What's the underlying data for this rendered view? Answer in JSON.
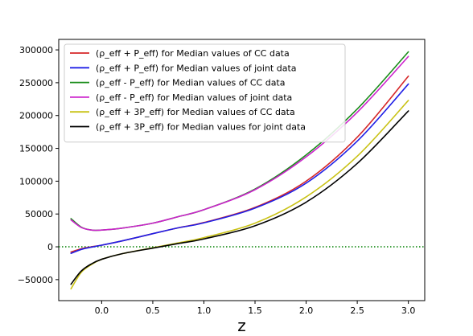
{
  "chart_data": {
    "type": "line",
    "title": "",
    "xlabel": "z",
    "ylabel": "",
    "xlim": [
      -0.42,
      3.16
    ],
    "ylim": [
      -82000,
      316000
    ],
    "xticks": [
      0.0,
      0.5,
      1.0,
      1.5,
      2.0,
      2.5,
      3.0
    ],
    "xtick_labels": [
      "0.0",
      "0.5",
      "1.0",
      "1.5",
      "2.0",
      "2.5",
      "3.0"
    ],
    "yticks": [
      -50000,
      0,
      50000,
      100000,
      150000,
      200000,
      250000,
      300000
    ],
    "ytick_labels": [
      "−50000",
      "0",
      "50000",
      "100000",
      "150000",
      "200000",
      "250000",
      "300000"
    ],
    "grid": false,
    "legend_position": "top-left",
    "reference_line": {
      "y": 0,
      "style": "dotted",
      "color": "#008000"
    },
    "x": [
      -0.3,
      -0.2,
      -0.1,
      0.0,
      0.2,
      0.5,
      0.75,
      1.0,
      1.5,
      2.0,
      2.5,
      3.0
    ],
    "series": [
      {
        "name": "(ρ_eff + P_eff) for Median values of CC data",
        "color": "#d62728",
        "values": [
          -8000,
          -3000,
          0,
          2500,
          9000,
          20000,
          29000,
          37000,
          60000,
          100000,
          167000,
          260000
        ]
      },
      {
        "name": "(ρ_eff + P_eff) for Median values of joint data",
        "color": "#1f1fe6",
        "values": [
          -10000,
          -4000,
          -500,
          2500,
          9000,
          20000,
          29000,
          36500,
          59000,
          97000,
          161000,
          248000
        ]
      },
      {
        "name": "(ρ_eff - P_eff) for Median values of CC data",
        "color": "#1a8c1a",
        "values": [
          43000,
          30000,
          25500,
          25500,
          28500,
          36000,
          46000,
          56500,
          88000,
          140000,
          210000,
          297000
        ]
      },
      {
        "name": "(ρ_eff - P_eff) for Median values of joint data",
        "color": "#cc22cc",
        "values": [
          41000,
          29500,
          25500,
          25500,
          28500,
          36000,
          46000,
          56500,
          87000,
          137000,
          205000,
          290000
        ]
      },
      {
        "name": "(ρ_eff + 3P_eff) for Median values of CC data",
        "color": "#c9c215",
        "values": [
          -64000,
          -39000,
          -27000,
          -19000,
          -10500,
          -1500,
          6000,
          14000,
          36000,
          76000,
          138000,
          223000
        ]
      },
      {
        "name": "(ρ_eff + 3P_eff) for Median values for joint data",
        "color": "#000000",
        "values": [
          -57000,
          -37000,
          -26000,
          -19000,
          -10500,
          -2000,
          5000,
          12000,
          32000,
          68000,
          127000,
          207000
        ]
      }
    ]
  }
}
